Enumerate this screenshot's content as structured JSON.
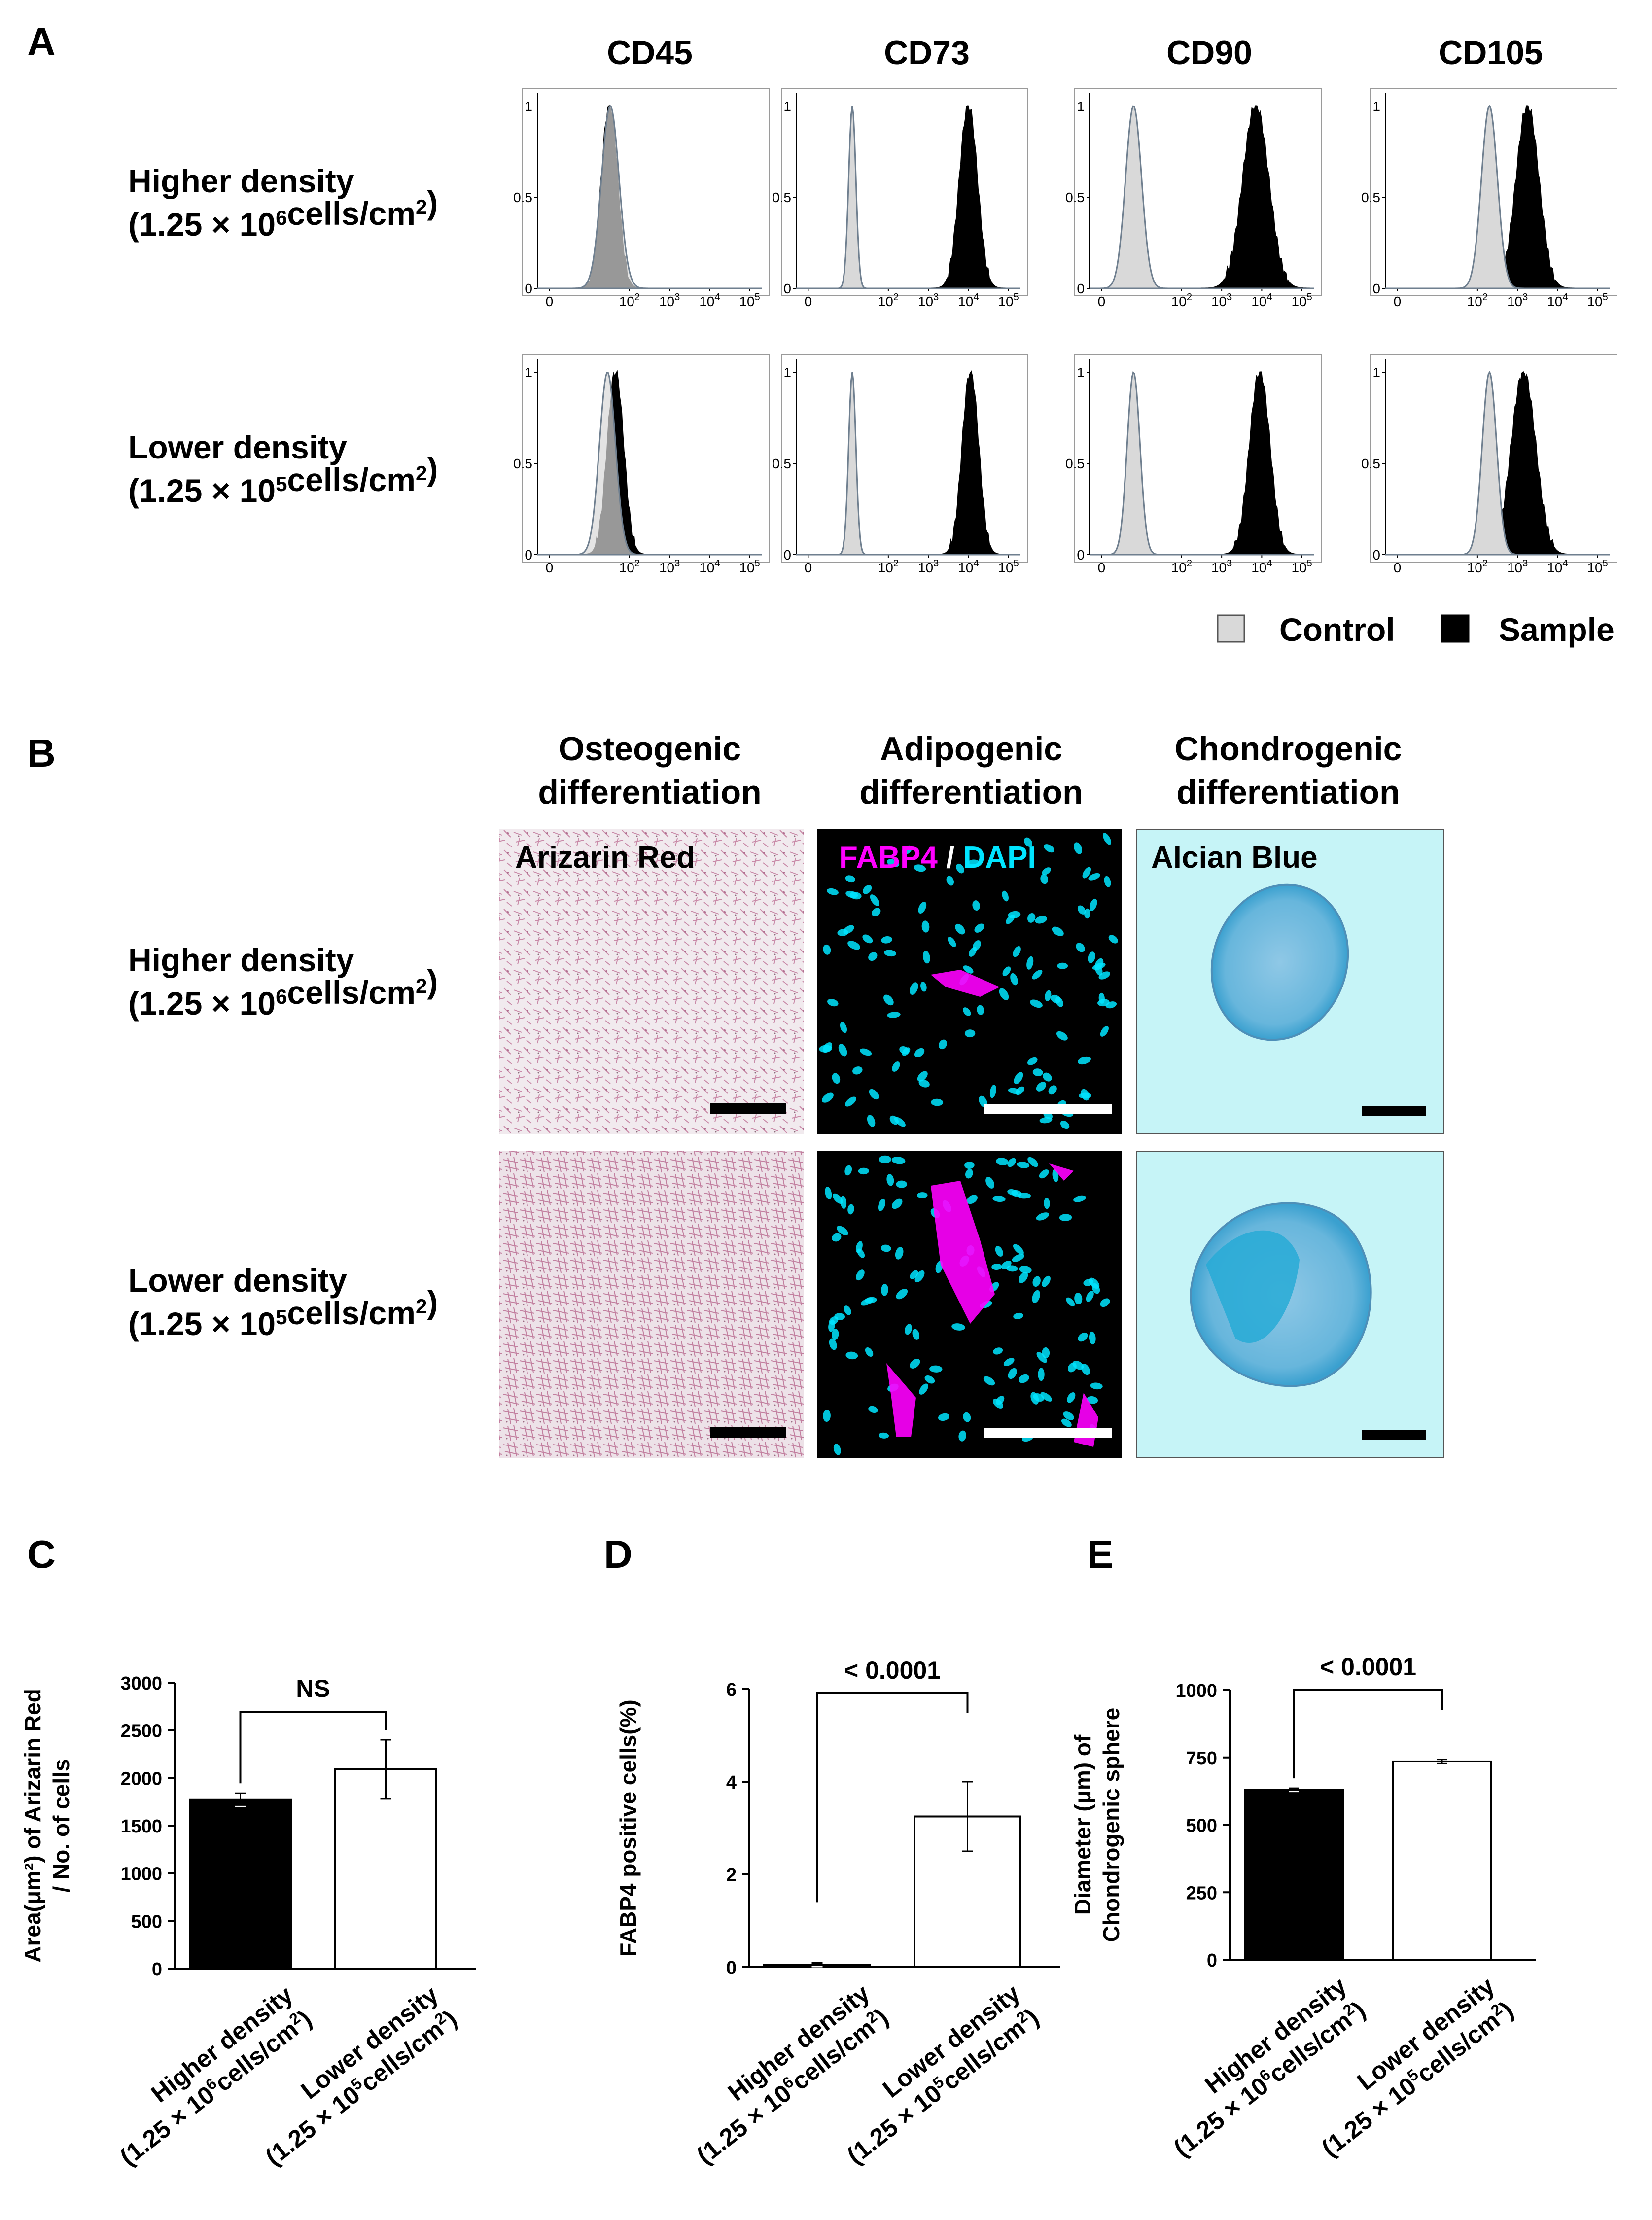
{
  "panels": {
    "A": "A",
    "B": "B",
    "C": "C",
    "D": "D",
    "E": "E"
  },
  "flow": {
    "markers": [
      "CD45",
      "CD73",
      "CD90",
      "CD105"
    ],
    "row_labels": [
      {
        "main": "Higher density",
        "base": "(1.25 × 10",
        "exp": "6",
        "mid": "cells/cm",
        "exp2": "2",
        "end": ")"
      },
      {
        "main": "Lower density",
        "base": "(1.25 × 10",
        "exp": "5",
        "mid": "cells/cm",
        "exp2": "2",
        "end": ")"
      }
    ],
    "y_ticks": [
      "1",
      "0.5",
      "0"
    ],
    "x_ticks": [
      "0",
      "10",
      "10",
      "10",
      "10"
    ],
    "x_tick_exps": [
      "",
      "2",
      "3",
      "4",
      "5"
    ],
    "legend": {
      "control": "Control",
      "sample": "Sample",
      "control_color": "#d9d9d9",
      "sample_color": "#000000"
    },
    "histograms": [
      [
        {
          "control_peak": 1.52,
          "control_width": 0.22,
          "sample_peak": 1.5,
          "sample_width": 0.2
        },
        {
          "control_peak": 1.1,
          "control_width": 0.09,
          "sample_peak": 4.0,
          "sample_width": 0.22
        },
        {
          "control_peak": 0.8,
          "control_width": 0.2,
          "sample_peak": 3.85,
          "sample_width": 0.32
        },
        {
          "control_peak": 2.3,
          "control_width": 0.2,
          "sample_peak": 3.25,
          "sample_width": 0.28
        }
      ],
      [
        {
          "control_peak": 1.45,
          "control_width": 0.2,
          "sample_peak": 1.65,
          "sample_width": 0.2
        },
        {
          "control_peak": 1.1,
          "control_width": 0.09,
          "sample_peak": 4.05,
          "sample_width": 0.2
        },
        {
          "control_peak": 0.8,
          "control_width": 0.16,
          "sample_peak": 3.95,
          "sample_width": 0.25
        },
        {
          "control_peak": 2.3,
          "control_width": 0.18,
          "sample_peak": 3.15,
          "sample_width": 0.3
        }
      ]
    ]
  },
  "diff": {
    "col_headers": [
      [
        "Osteogenic",
        "differentiation"
      ],
      [
        "Adipogenic",
        "differentiation"
      ],
      [
        "Chondrogenic",
        "differentiation"
      ]
    ],
    "stains": {
      "osteo": "Arizarin Red",
      "fabp4": "FABP4",
      "slash": " / ",
      "dapi": "DAPI",
      "chondro": "Alcian Blue"
    },
    "colors": {
      "fabp4": "#ff00ff",
      "dapi": "#00e5ff",
      "osteo_bg": "#efe6ea",
      "alcian_bg": "#c6f4f7"
    }
  },
  "chart_data": [
    {
      "type": "bar",
      "panel": "C",
      "categories": [
        "Higher density (1.25 × 10⁶cells/cm²)",
        "Lower density (1.25 × 10⁵cells/cm²)"
      ],
      "cat_main": [
        "Higher density",
        "Lower density"
      ],
      "cat_sub_base": [
        "(1.25 × 10",
        "(1.25 × 10"
      ],
      "cat_sub_exp": [
        "6",
        "5"
      ],
      "cat_sub_mid": "cells/cm",
      "cat_sub_exp2": "2",
      "cat_sub_end": ")",
      "values": [
        1770,
        2090
      ],
      "errors": [
        70,
        310
      ],
      "fills": [
        "#000000",
        "#ffffff"
      ],
      "ylim": [
        0,
        3000
      ],
      "yticks": [
        0,
        500,
        1000,
        1500,
        2000,
        2500,
        3000
      ],
      "ylabel_lines": [
        "Area(μm²) of Arizarin Red",
        "/ No. of cells"
      ],
      "significance": "NS"
    },
    {
      "type": "bar",
      "panel": "D",
      "categories": [
        "Higher density (1.25 × 10⁶cells/cm²)",
        "Lower density (1.25 × 10⁵cells/cm²)"
      ],
      "cat_main": [
        "Higher density",
        "Lower density"
      ],
      "cat_sub_base": [
        "(1.25 × 10",
        "(1.25 × 10"
      ],
      "cat_sub_exp": [
        "6",
        "5"
      ],
      "cat_sub_mid": "cells/cm",
      "cat_sub_exp2": "2",
      "cat_sub_end": ")",
      "values": [
        0.05,
        3.25
      ],
      "errors": [
        0.04,
        0.75
      ],
      "fills": [
        "#000000",
        "#ffffff"
      ],
      "ylim": [
        0,
        6
      ],
      "yticks": [
        0,
        2,
        4,
        6
      ],
      "ylabel_lines": [
        "FABP4 positive cells(%)"
      ],
      "significance": "< 0.0001"
    },
    {
      "type": "bar",
      "panel": "E",
      "categories": [
        "Higher density (1.25 × 10⁶cells/cm²)",
        "Lower density (1.25 × 10⁵cells/cm²)"
      ],
      "cat_main": [
        "Higher density",
        "Lower density"
      ],
      "cat_sub_base": [
        "(1.25 × 10",
        "(1.25 × 10"
      ],
      "cat_sub_exp": [
        "6",
        "5"
      ],
      "cat_sub_mid": "cells/cm",
      "cat_sub_exp2": "2",
      "cat_sub_end": ")",
      "values": [
        630,
        735
      ],
      "errors": [
        6,
        8
      ],
      "fills": [
        "#000000",
        "#ffffff"
      ],
      "ylim": [
        0,
        1000
      ],
      "yticks": [
        0,
        250,
        500,
        750,
        1000
      ],
      "ylabel_lines": [
        "Diameter (μm) of",
        "Chondrogenic sphere"
      ],
      "significance": "< 0.0001"
    }
  ]
}
